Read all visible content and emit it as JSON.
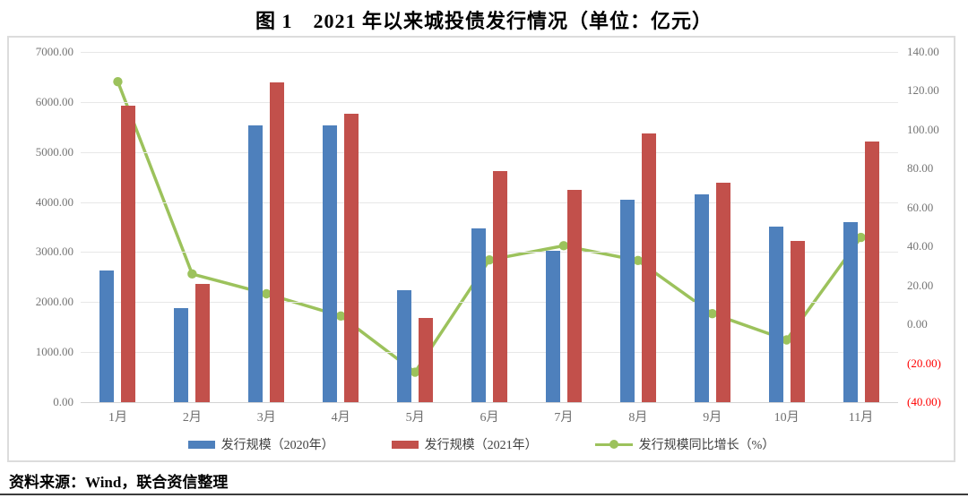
{
  "title": "图 1　2021 年以来城投债发行情况（单位：亿元）",
  "source": "资料来源：Wind，联合资信整理",
  "colors": {
    "bar_2020": "#4e80bc",
    "bar_2021": "#c2504b",
    "growth_line": "#9cc25c",
    "negative_axis_label": "#ff0000",
    "gridline": "#e7e7e7",
    "frame_border": "#dcdcdc"
  },
  "chart_data": {
    "type": "bar",
    "subtype": "grouped bars with secondary-axis line",
    "title": "图 1　2021 年以来城投债发行情况（单位：亿元）",
    "categories": [
      "1月",
      "2月",
      "3月",
      "4月",
      "5月",
      "6月",
      "7月",
      "8月",
      "9月",
      "10月",
      "11月"
    ],
    "series": [
      {
        "name": "发行规模（2020年）",
        "type": "bar",
        "axis": "left",
        "color": "#4e80bc",
        "values": [
          2640,
          1880,
          5530,
          5530,
          2240,
          3470,
          3020,
          4050,
          4160,
          3510,
          3600
        ]
      },
      {
        "name": "发行规模（2021年）",
        "type": "bar",
        "axis": "left",
        "color": "#c2504b",
        "values": [
          5930,
          2370,
          6400,
          5770,
          1690,
          4620,
          4240,
          5380,
          4390,
          3230,
          5210
        ]
      },
      {
        "name": "发行规模同比增长（%）",
        "type": "line",
        "axis": "right",
        "color": "#9cc25c",
        "values": [
          124.7,
          25.9,
          15.7,
          4.3,
          -24.6,
          33.1,
          40.4,
          32.8,
          5.5,
          -8.0,
          44.7
        ]
      }
    ],
    "left_axis": {
      "min": 0,
      "max": 7000,
      "step": 1000,
      "labels": [
        "7000.00",
        "6000.00",
        "5000.00",
        "4000.00",
        "3000.00",
        "2000.00",
        "1000.00",
        "0.00"
      ]
    },
    "right_axis": {
      "min": -40,
      "max": 140,
      "step": 20,
      "labels": [
        "140.00",
        "120.00",
        "100.00",
        "80.00",
        "60.00",
        "40.00",
        "20.00",
        "0.00",
        "(20.00)",
        "(40.00)"
      ],
      "negative_labels": [
        "(20.00)",
        "(40.00)"
      ]
    },
    "grid": "horizontal only",
    "legend_position": "bottom center"
  }
}
